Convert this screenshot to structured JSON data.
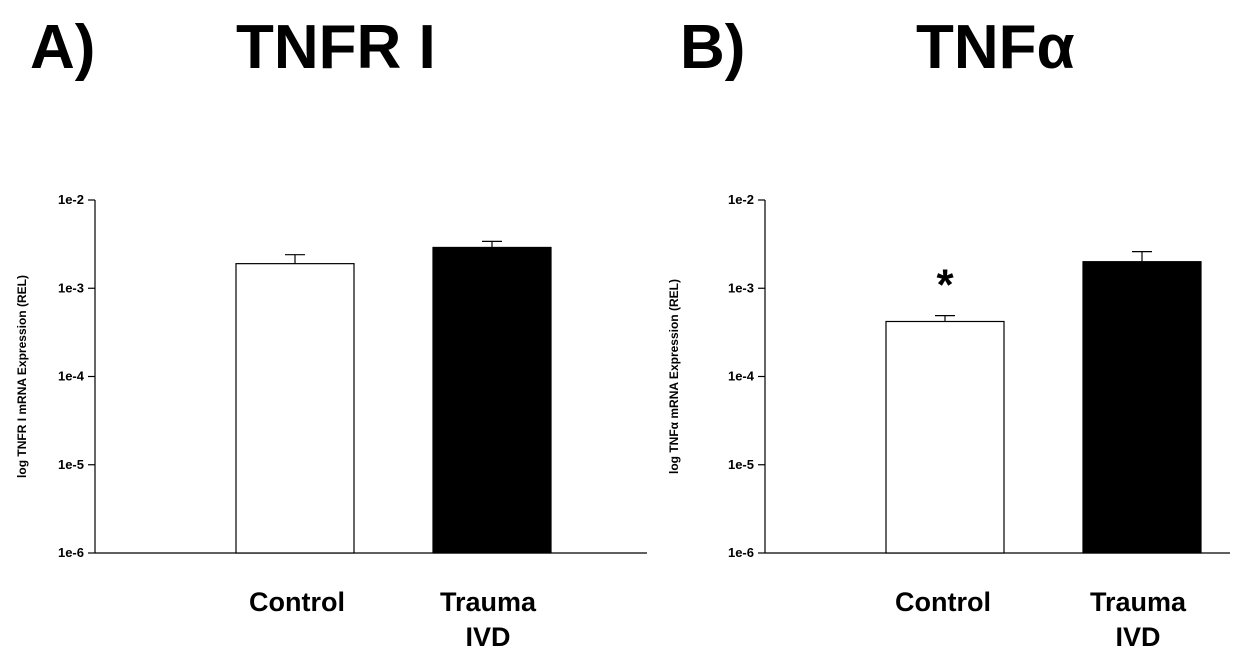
{
  "panels": [
    {
      "letter": "A)",
      "title": "TNFR I"
    },
    {
      "letter": "B)",
      "title": "TNFα"
    }
  ],
  "chart_data": [
    {
      "type": "bar",
      "title": "TNFR I",
      "ylabel": "log TNFR I mRNA Expression (REL)",
      "yscale": "log",
      "ylim": [
        1e-06,
        0.01
      ],
      "yticks": [
        "1e-2",
        "1e-3",
        "1e-4",
        "1e-5",
        "1e-6"
      ],
      "categories": [
        [
          "Control"
        ],
        [
          "Trauma",
          "IVD"
        ]
      ],
      "values": [
        0.0019,
        0.0029
      ],
      "error_upper": [
        0.0024,
        0.0034
      ],
      "bar_colors": [
        "#ffffff",
        "#000000"
      ],
      "annotations": []
    },
    {
      "type": "bar",
      "title": "TNFα",
      "ylabel": "log TNFα mRNA Expression (REL)",
      "yscale": "log",
      "ylim": [
        1e-06,
        0.01
      ],
      "yticks": [
        "1e-2",
        "1e-3",
        "1e-4",
        "1e-5",
        "1e-6"
      ],
      "categories": [
        [
          "Control"
        ],
        [
          "Trauma",
          "IVD"
        ]
      ],
      "values": [
        0.00042,
        0.002
      ],
      "error_upper": [
        0.00049,
        0.0026
      ],
      "bar_colors": [
        "#ffffff",
        "#000000"
      ],
      "annotations": [
        "*",
        ""
      ]
    }
  ]
}
